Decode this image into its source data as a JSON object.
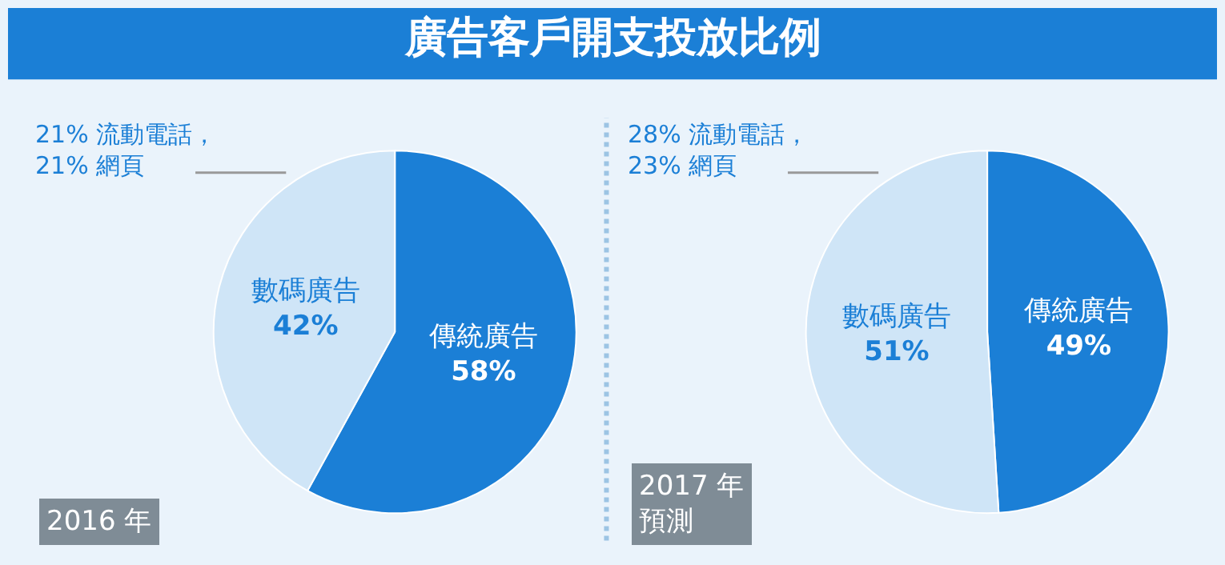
{
  "chart_data": [
    {
      "type": "pie",
      "title": "廣告客戶開支投放比例",
      "categories": [
        "傳統廣告",
        "數碼廣告"
      ],
      "values": [
        58,
        42
      ],
      "value_labels": [
        "58%",
        "42%"
      ],
      "colors": [
        "#1b7fd6",
        "#cfe5f7"
      ],
      "annotations": [
        "21% 流動電話，\n21% 網頁",
        "2016 年"
      ]
    },
    {
      "type": "pie",
      "categories": [
        "傳統廣告",
        "數碼廣告"
      ],
      "values": [
        49,
        51
      ],
      "value_labels": [
        "49%",
        "51%"
      ],
      "colors": [
        "#1b7fd6",
        "#cfe5f7"
      ],
      "annotations": [
        "28% 流動電話，\n23% 網頁",
        "2017 年",
        "預測"
      ]
    }
  ]
}
